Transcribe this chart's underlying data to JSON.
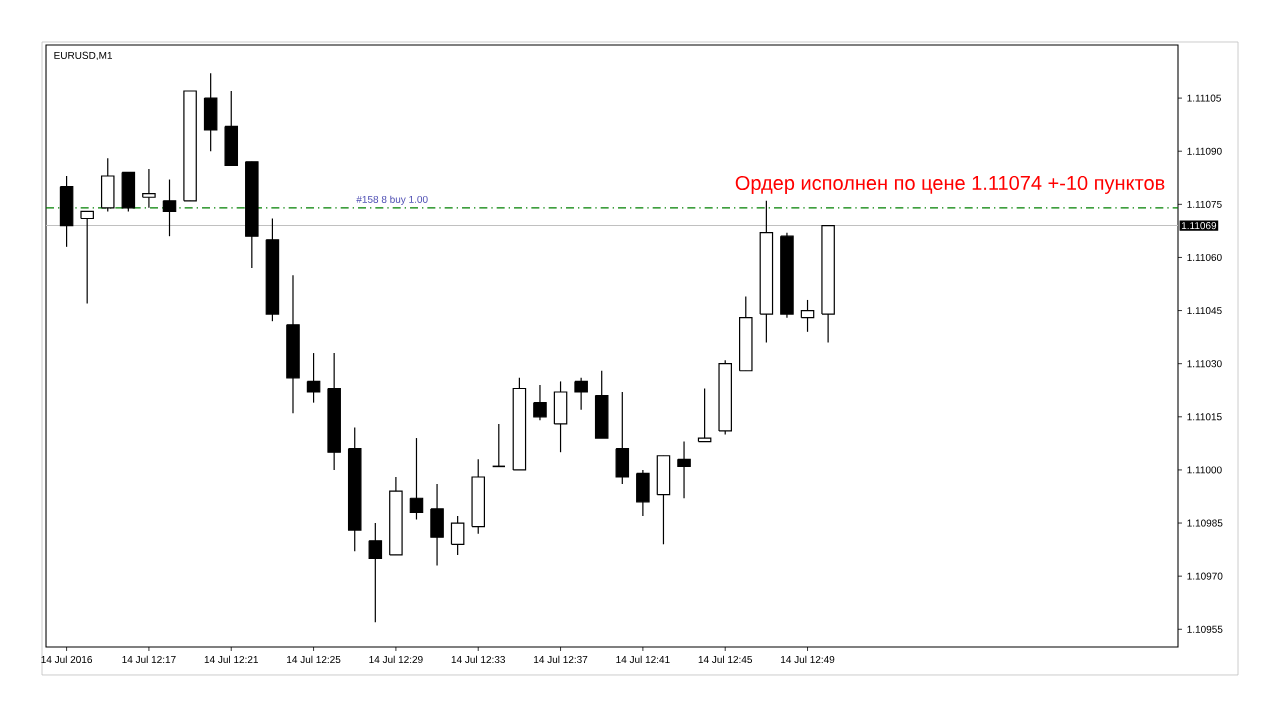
{
  "chart_data": {
    "type": "candlestick",
    "title": "EURUSD,M1",
    "x": [
      "2016-07-14T12:13",
      "2016-07-14T12:14",
      "2016-07-14T12:15",
      "2016-07-14T12:16",
      "2016-07-14T12:17",
      "2016-07-14T12:18",
      "2016-07-14T12:19",
      "2016-07-14T12:20",
      "2016-07-14T12:21",
      "2016-07-14T12:22",
      "2016-07-14T12:23",
      "2016-07-14T12:24",
      "2016-07-14T12:25",
      "2016-07-14T12:26",
      "2016-07-14T12:27",
      "2016-07-14T12:28",
      "2016-07-14T12:29",
      "2016-07-14T12:30",
      "2016-07-14T12:31",
      "2016-07-14T12:32",
      "2016-07-14T12:33",
      "2016-07-14T12:34",
      "2016-07-14T12:35",
      "2016-07-14T12:36",
      "2016-07-14T12:37",
      "2016-07-14T12:38",
      "2016-07-14T12:39",
      "2016-07-14T12:40",
      "2016-07-14T12:41",
      "2016-07-14T12:42",
      "2016-07-14T12:43",
      "2016-07-14T12:44",
      "2016-07-14T12:45",
      "2016-07-14T12:46",
      "2016-07-14T12:47",
      "2016-07-14T12:48",
      "2016-07-14T12:49",
      "2016-07-14T12:50"
    ],
    "ohlc": [
      [
        1.1108,
        1.11083,
        1.11063,
        1.11069
      ],
      [
        1.11071,
        1.11073,
        1.11047,
        1.11073
      ],
      [
        1.11074,
        1.11088,
        1.11073,
        1.11083
      ],
      [
        1.11084,
        1.11084,
        1.11073,
        1.11074
      ],
      [
        1.11077,
        1.11085,
        1.11074,
        1.11078
      ],
      [
        1.11076,
        1.11082,
        1.11066,
        1.11073
      ],
      [
        1.11076,
        1.11107,
        1.11076,
        1.11107
      ],
      [
        1.11105,
        1.11112,
        1.1109,
        1.11096
      ],
      [
        1.11097,
        1.11107,
        1.11086,
        1.11086
      ],
      [
        1.11087,
        1.11087,
        1.11057,
        1.11066
      ],
      [
        1.11065,
        1.11071,
        1.11042,
        1.11044
      ],
      [
        1.11041,
        1.11055,
        1.11016,
        1.11026
      ],
      [
        1.11025,
        1.11033,
        1.11019,
        1.11022
      ],
      [
        1.11023,
        1.11033,
        1.11,
        1.11005
      ],
      [
        1.11006,
        1.11012,
        1.10977,
        1.10983
      ],
      [
        1.1098,
        1.10985,
        1.10957,
        1.10975
      ],
      [
        1.10976,
        1.10998,
        1.10976,
        1.10994
      ],
      [
        1.10992,
        1.11009,
        1.10986,
        1.10988
      ],
      [
        1.10989,
        1.10996,
        1.10973,
        1.10981
      ],
      [
        1.10979,
        1.10987,
        1.10976,
        1.10985
      ],
      [
        1.10984,
        1.11003,
        1.10982,
        1.10998
      ],
      [
        1.11001,
        1.11013,
        1.11001,
        1.11001
      ],
      [
        1.11,
        1.11026,
        1.11,
        1.11023
      ],
      [
        1.11019,
        1.11024,
        1.11014,
        1.11015
      ],
      [
        1.11013,
        1.11025,
        1.11005,
        1.11022
      ],
      [
        1.11025,
        1.11026,
        1.11017,
        1.11022
      ],
      [
        1.11021,
        1.11028,
        1.11009,
        1.11009
      ],
      [
        1.11006,
        1.11022,
        1.10996,
        1.10998
      ],
      [
        1.10999,
        1.11,
        1.10987,
        1.10991
      ],
      [
        1.10993,
        1.11004,
        1.10979,
        1.11004
      ],
      [
        1.11003,
        1.11008,
        1.10992,
        1.11001
      ],
      [
        1.11008,
        1.11023,
        1.11008,
        1.11009
      ],
      [
        1.11011,
        1.11031,
        1.1101,
        1.1103
      ],
      [
        1.11028,
        1.11049,
        1.11028,
        1.11043
      ],
      [
        1.11044,
        1.11076,
        1.11036,
        1.11067
      ],
      [
        1.11066,
        1.11067,
        1.11043,
        1.11044
      ],
      [
        1.11043,
        1.11048,
        1.11039,
        1.11045
      ],
      [
        1.11044,
        1.11069,
        1.11036,
        1.11069
      ]
    ],
    "xlim": [
      "2016-07-14T12:12",
      "2016-07-14T13:07"
    ],
    "xticks": [
      {
        "value": "2016-07-14T12:13",
        "label": "14 Jul 2016"
      },
      {
        "value": "2016-07-14T12:17",
        "label": "14 Jul 12:17"
      },
      {
        "value": "2016-07-14T12:21",
        "label": "14 Jul 12:21"
      },
      {
        "value": "2016-07-14T12:25",
        "label": "14 Jul 12:25"
      },
      {
        "value": "2016-07-14T12:29",
        "label": "14 Jul 12:29"
      },
      {
        "value": "2016-07-14T12:33",
        "label": "14 Jul 12:33"
      },
      {
        "value": "2016-07-14T12:37",
        "label": "14 Jul 12:37"
      },
      {
        "value": "2016-07-14T12:41",
        "label": "14 Jul 12:41"
      },
      {
        "value": "2016-07-14T12:45",
        "label": "14 Jul 12:45"
      },
      {
        "value": "2016-07-14T12:49",
        "label": "14 Jul 12:49"
      }
    ],
    "ylim": [
      1.1095,
      1.1112
    ],
    "yticks": [
      1.10955,
      {
        "value": 1.1097,
        "label": "1.10970"
      },
      1.10985,
      {
        "value": 1.11,
        "label": "1.11000"
      },
      1.11015,
      {
        "value": 1.1103,
        "label": "1.11030"
      },
      1.11045,
      {
        "value": 1.1106,
        "label": "1.11060"
      },
      1.11075,
      {
        "value": 1.1109,
        "label": "1.11090"
      },
      1.11105
    ],
    "ref_lines": [
      {
        "axis": "y",
        "value": 1.11074,
        "label": "#158 8 buy 1.00",
        "color": "#008000",
        "line_style": "dashdot"
      },
      {
        "axis": "y",
        "value": 1.11069,
        "label": "1.11069",
        "color": "#c0c0c0"
      }
    ],
    "annotations": [
      "Ордер исполнен по цене 1.11074 +-10 пунктов"
    ]
  }
}
